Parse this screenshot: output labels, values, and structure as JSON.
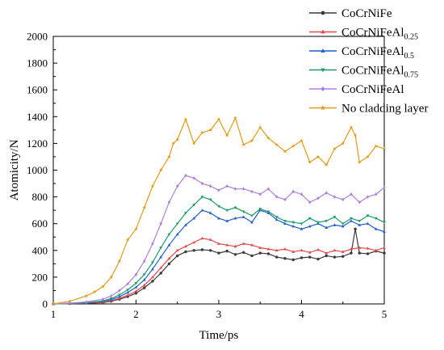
{
  "chart_data": {
    "type": "line",
    "title": "",
    "xlabel": "Time/ps",
    "ylabel": "Atomicity/N",
    "xlim": [
      1,
      5
    ],
    "ylim": [
      0,
      2000
    ],
    "xticks": [
      "1",
      "2",
      "3",
      "4",
      "5"
    ],
    "yticks": [
      "0",
      "200",
      "400",
      "600",
      "800",
      "1000",
      "1200",
      "1400",
      "1600",
      "1800",
      "2000"
    ],
    "grid": false,
    "legend_position": "top-right",
    "series": [
      {
        "name": "CoCrNiFe",
        "legend": {
          "base": "CoCrNiFe",
          "sub": ""
        },
        "color": "#3a3a3a",
        "marker": "circle",
        "x": [
          1.0,
          1.2,
          1.4,
          1.6,
          1.7,
          1.8,
          1.9,
          2.0,
          2.1,
          2.2,
          2.3,
          2.4,
          2.5,
          2.6,
          2.7,
          2.8,
          2.9,
          3.0,
          3.1,
          3.2,
          3.3,
          3.4,
          3.5,
          3.6,
          3.7,
          3.8,
          3.9,
          4.0,
          4.1,
          4.2,
          4.3,
          4.4,
          4.5,
          4.6,
          4.65,
          4.7,
          4.8,
          4.9,
          5.0
        ],
        "y": [
          0,
          2,
          5,
          10,
          20,
          35,
          55,
          80,
          120,
          170,
          230,
          300,
          360,
          390,
          400,
          405,
          400,
          380,
          395,
          370,
          385,
          360,
          380,
          375,
          350,
          340,
          330,
          345,
          350,
          335,
          360,
          350,
          355,
          380,
          560,
          380,
          375,
          395,
          380
        ]
      },
      {
        "name": "CoCrNiFeAl0.25",
        "legend": {
          "base": "CoCrNiFeAl",
          "sub": "0.25"
        },
        "color": "#e8474c",
        "marker": "triangle",
        "x": [
          1.0,
          1.2,
          1.4,
          1.6,
          1.7,
          1.8,
          1.9,
          2.0,
          2.1,
          2.2,
          2.3,
          2.4,
          2.5,
          2.6,
          2.7,
          2.8,
          2.9,
          3.0,
          3.1,
          3.2,
          3.3,
          3.4,
          3.5,
          3.6,
          3.7,
          3.8,
          3.9,
          4.0,
          4.1,
          4.2,
          4.3,
          4.4,
          4.5,
          4.6,
          4.7,
          4.8,
          4.9,
          5.0
        ],
        "y": [
          0,
          2,
          6,
          12,
          24,
          42,
          65,
          95,
          140,
          200,
          270,
          340,
          400,
          430,
          460,
          490,
          480,
          450,
          440,
          430,
          450,
          440,
          420,
          410,
          400,
          410,
          390,
          400,
          385,
          405,
          380,
          400,
          390,
          410,
          420,
          415,
          400,
          420
        ]
      },
      {
        "name": "CoCrNiFeAl0.5",
        "legend": {
          "base": "CoCrNiFeAl",
          "sub": "0.5"
        },
        "color": "#1f5fc8",
        "marker": "triangle",
        "x": [
          1.0,
          1.2,
          1.4,
          1.6,
          1.7,
          1.8,
          1.9,
          2.0,
          2.1,
          2.2,
          2.3,
          2.4,
          2.5,
          2.6,
          2.7,
          2.8,
          2.9,
          3.0,
          3.1,
          3.2,
          3.3,
          3.4,
          3.5,
          3.6,
          3.7,
          3.8,
          3.9,
          4.0,
          4.1,
          4.2,
          4.3,
          4.4,
          4.5,
          4.6,
          4.7,
          4.8,
          4.9,
          5.0
        ],
        "y": [
          0,
          3,
          8,
          18,
          32,
          55,
          85,
          125,
          180,
          260,
          350,
          440,
          520,
          590,
          640,
          700,
          680,
          640,
          620,
          640,
          650,
          610,
          700,
          680,
          630,
          600,
          580,
          560,
          580,
          600,
          570,
          590,
          580,
          620,
          590,
          600,
          560,
          540
        ]
      },
      {
        "name": "CoCrNiFeAl0.75",
        "legend": {
          "base": "CoCrNiFeAl",
          "sub": "0.75"
        },
        "color": "#1e9a6a",
        "marker": "triangle-down",
        "x": [
          1.0,
          1.2,
          1.4,
          1.6,
          1.7,
          1.8,
          1.9,
          2.0,
          2.1,
          2.2,
          2.3,
          2.4,
          2.5,
          2.6,
          2.7,
          2.8,
          2.9,
          3.0,
          3.1,
          3.2,
          3.3,
          3.4,
          3.5,
          3.6,
          3.7,
          3.8,
          3.9,
          4.0,
          4.1,
          4.2,
          4.3,
          4.4,
          4.5,
          4.6,
          4.7,
          4.8,
          4.9,
          5.0
        ],
        "y": [
          0,
          4,
          10,
          22,
          40,
          68,
          105,
          155,
          220,
          310,
          420,
          520,
          600,
          680,
          740,
          800,
          780,
          730,
          700,
          720,
          690,
          660,
          710,
          690,
          650,
          620,
          610,
          600,
          640,
          610,
          620,
          650,
          600,
          640,
          620,
          660,
          640,
          610
        ]
      },
      {
        "name": "CoCrNiFeAl",
        "legend": {
          "base": "CoCrNiFeAl",
          "sub": ""
        },
        "color": "#b07ee0",
        "marker": "diamond",
        "x": [
          1.0,
          1.2,
          1.4,
          1.6,
          1.7,
          1.8,
          1.9,
          2.0,
          2.1,
          2.2,
          2.3,
          2.4,
          2.5,
          2.6,
          2.7,
          2.8,
          2.9,
          3.0,
          3.1,
          3.2,
          3.3,
          3.4,
          3.5,
          3.6,
          3.7,
          3.8,
          3.9,
          4.0,
          4.1,
          4.2,
          4.3,
          4.4,
          4.5,
          4.6,
          4.7,
          4.8,
          4.9,
          5.0
        ],
        "y": [
          0,
          6,
          15,
          35,
          60,
          100,
          150,
          220,
          320,
          450,
          600,
          760,
          880,
          960,
          940,
          900,
          880,
          850,
          880,
          860,
          860,
          840,
          820,
          860,
          800,
          780,
          840,
          820,
          760,
          790,
          830,
          800,
          780,
          820,
          760,
          800,
          820,
          870
        ]
      },
      {
        "name": "No cladding layer",
        "legend": {
          "base": "No cladding layer",
          "sub": ""
        },
        "color": "#e49a15",
        "marker": "star",
        "x": [
          1.0,
          1.2,
          1.4,
          1.5,
          1.6,
          1.7,
          1.8,
          1.9,
          2.0,
          2.1,
          2.2,
          2.3,
          2.4,
          2.45,
          2.5,
          2.6,
          2.7,
          2.8,
          2.9,
          3.0,
          3.1,
          3.2,
          3.3,
          3.4,
          3.5,
          3.6,
          3.7,
          3.8,
          3.9,
          4.0,
          4.1,
          4.2,
          4.3,
          4.4,
          4.5,
          4.6,
          4.65,
          4.7,
          4.8,
          4.9,
          5.0
        ],
        "y": [
          0,
          20,
          60,
          90,
          130,
          200,
          320,
          480,
          560,
          720,
          880,
          1000,
          1100,
          1200,
          1230,
          1380,
          1200,
          1280,
          1300,
          1380,
          1260,
          1390,
          1190,
          1220,
          1320,
          1240,
          1190,
          1140,
          1180,
          1220,
          1060,
          1100,
          1040,
          1160,
          1200,
          1320,
          1260,
          1060,
          1100,
          1180,
          1160
        ]
      }
    ]
  }
}
